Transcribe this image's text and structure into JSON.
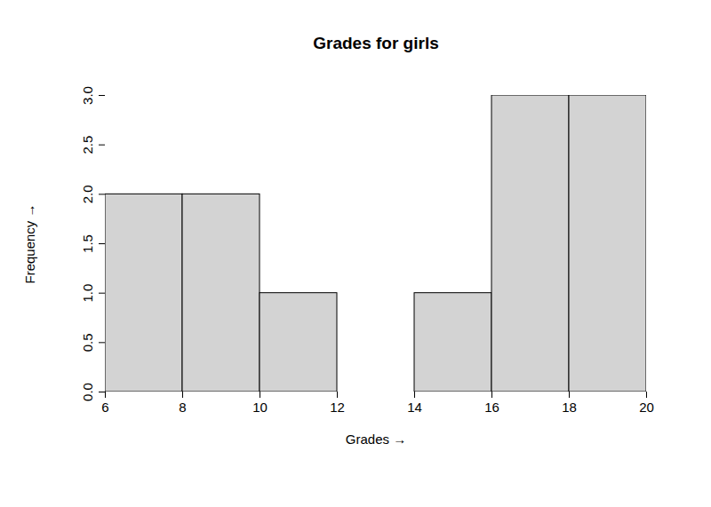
{
  "chart_data": {
    "type": "histogram",
    "title": "Grades for girls",
    "x_label": "Grades",
    "y_label": "Frequency",
    "bins": [
      6,
      8,
      10,
      12,
      14,
      16,
      18,
      20
    ],
    "values": [
      2,
      2,
      1,
      0,
      1,
      3,
      3
    ],
    "color": "#d3d3d3",
    "xlim": [
      6,
      20
    ],
    "ylim": [
      0,
      3
    ],
    "xticks": [
      6,
      8,
      10,
      12,
      14,
      16,
      18,
      20
    ],
    "yticks": [
      {
        "value": 0,
        "label": "0.0"
      },
      0.5,
      {
        "value": 1,
        "label": "1.0"
      },
      1.5,
      {
        "value": 2,
        "label": "2.0"
      },
      2.5,
      {
        "value": 3,
        "label": "3.0"
      }
    ],
    "grid": false
  }
}
